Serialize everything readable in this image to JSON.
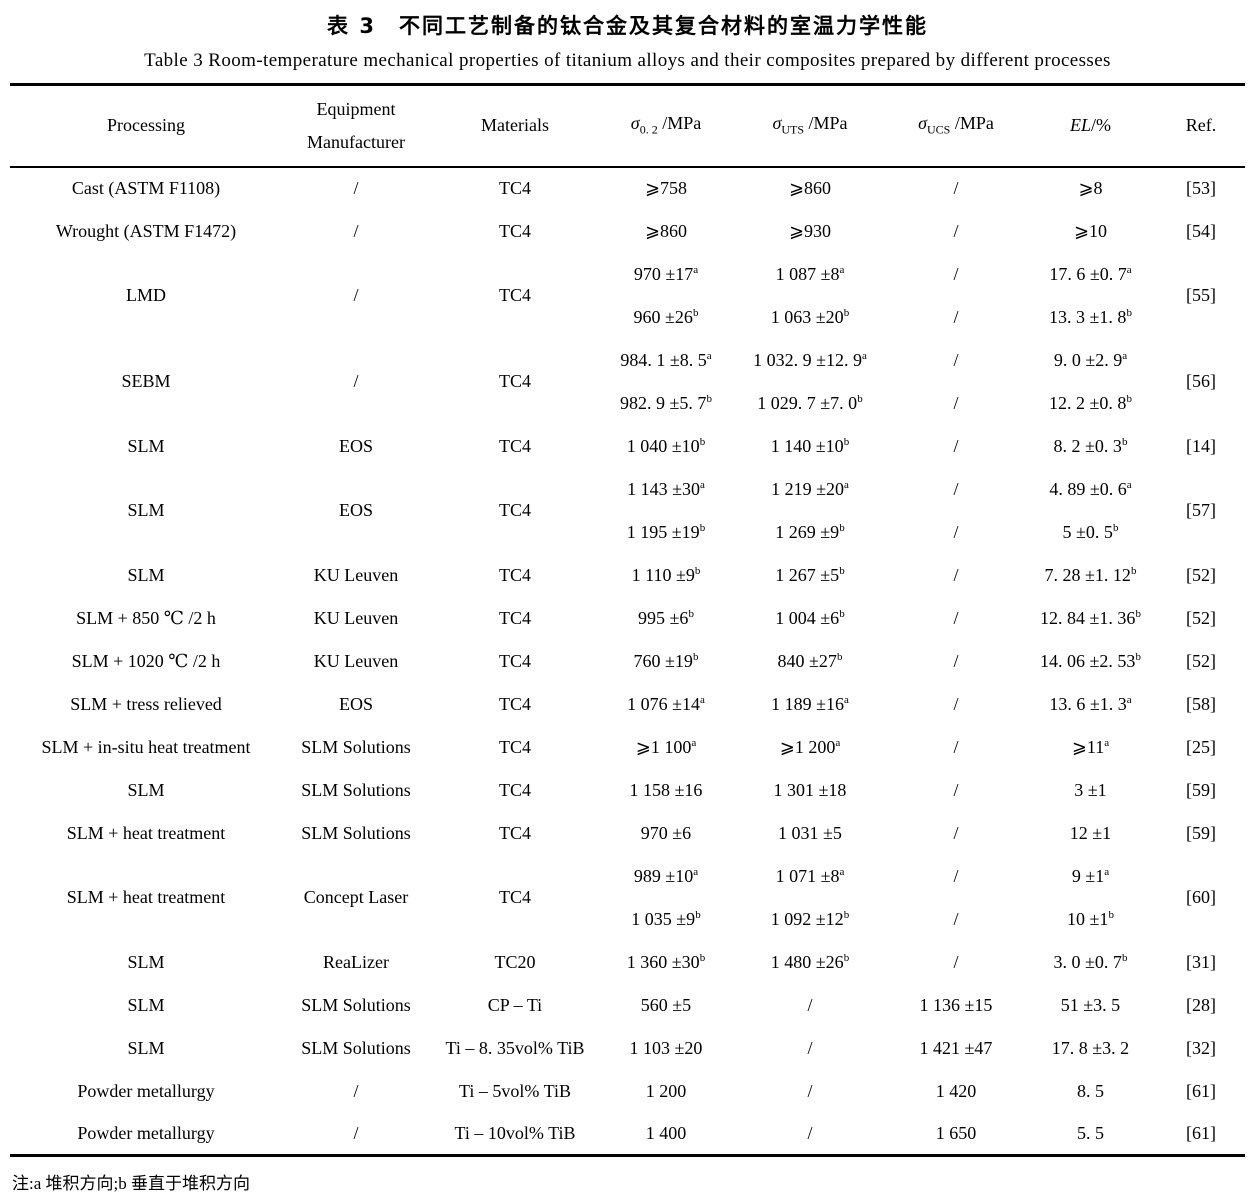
{
  "page": {
    "title_cn": "表 3　不同工艺制备的钛合金及其复合材料的室温力学性能",
    "title_en": "Table 3   Room-temperature mechanical properties of titanium alloys and their composites prepared by different processes",
    "footnote": "注:a 堆积方向;b 垂直于堆积方向",
    "colors": {
      "text": "#000000",
      "background": "#ffffff"
    }
  },
  "table": {
    "headers": {
      "processing": "Processing",
      "equipment_line1": "Equipment",
      "equipment_line2": "Manufacturer",
      "materials": "Materials",
      "sigma02": {
        "symbol": "σ",
        "sub": "0. 2",
        "unit": "/MPa"
      },
      "sigma_uts": {
        "symbol": "σ",
        "sub": "UTS",
        "unit": "/MPa"
      },
      "sigma_ucs": {
        "symbol": "σ",
        "sub": "UCS",
        "unit": "/MPa"
      },
      "el": {
        "symbol": "EL",
        "unit": "/%"
      },
      "ref": "Ref."
    },
    "rows": [
      {
        "processing": "Cast (ASTM F1108)",
        "manufacturer": "/",
        "materials": "TC4",
        "s02": [
          "⩾758"
        ],
        "uts": [
          "⩾860"
        ],
        "ucs": [
          "/"
        ],
        "el": [
          "⩾8"
        ],
        "ref": "[53]"
      },
      {
        "processing": "Wrought (ASTM F1472)",
        "manufacturer": "/",
        "materials": "TC4",
        "s02": [
          "⩾860"
        ],
        "uts": [
          "⩾930"
        ],
        "ucs": [
          "/"
        ],
        "el": [
          "⩾10"
        ],
        "ref": "[54]"
      },
      {
        "processing": "LMD",
        "manufacturer": "/",
        "materials": "TC4",
        "s02": [
          "970 ±17^a",
          "960 ±26^b"
        ],
        "uts": [
          "1 087 ±8^a",
          "1 063 ±20^b"
        ],
        "ucs": [
          "/",
          "/"
        ],
        "el": [
          "17. 6 ±0. 7^a",
          "13. 3 ±1. 8^b"
        ],
        "ref": "[55]"
      },
      {
        "processing": "SEBM",
        "manufacturer": "/",
        "materials": "TC4",
        "s02": [
          "984. 1 ±8. 5^a",
          "982. 9 ±5. 7^b"
        ],
        "uts": [
          "1 032. 9 ±12. 9^a",
          "1 029. 7 ±7. 0^b"
        ],
        "ucs": [
          "/",
          "/"
        ],
        "el": [
          "9. 0 ±2. 9^a",
          "12. 2 ±0. 8^b"
        ],
        "ref": "[56]"
      },
      {
        "processing": "SLM",
        "manufacturer": "EOS",
        "materials": "TC4",
        "s02": [
          "1 040 ±10^b"
        ],
        "uts": [
          "1 140 ±10^b"
        ],
        "ucs": [
          "/"
        ],
        "el": [
          "8. 2 ±0. 3^b"
        ],
        "ref": "[14]"
      },
      {
        "processing": "SLM",
        "manufacturer": "EOS",
        "materials": "TC4",
        "s02": [
          "1 143 ±30^a",
          "1 195 ±19^b"
        ],
        "uts": [
          "1 219 ±20^a",
          "1 269 ±9^b"
        ],
        "ucs": [
          "/",
          "/"
        ],
        "el": [
          "4. 89 ±0. 6^a",
          "5 ±0. 5^b"
        ],
        "ref": "[57]"
      },
      {
        "processing": "SLM",
        "manufacturer": "KU Leuven",
        "materials": "TC4",
        "s02": [
          "1 110 ±9^b"
        ],
        "uts": [
          "1 267 ±5^b"
        ],
        "ucs": [
          "/"
        ],
        "el": [
          "7. 28 ±1. 12^b"
        ],
        "ref": "[52]"
      },
      {
        "processing": "SLM + 850 ℃ /2 h",
        "manufacturer": "KU Leuven",
        "materials": "TC4",
        "s02": [
          "995 ±6^b"
        ],
        "uts": [
          "1 004 ±6^b"
        ],
        "ucs": [
          "/"
        ],
        "el": [
          "12. 84 ±1. 36^b"
        ],
        "ref": "[52]"
      },
      {
        "processing": "SLM + 1020 ℃ /2 h",
        "manufacturer": "KU Leuven",
        "materials": "TC4",
        "s02": [
          "760 ±19^b"
        ],
        "uts": [
          "840 ±27^b"
        ],
        "ucs": [
          "/"
        ],
        "el": [
          "14. 06 ±2. 53^b"
        ],
        "ref": "[52]"
      },
      {
        "processing": "SLM + tress relieved",
        "manufacturer": "EOS",
        "materials": "TC4",
        "s02": [
          "1 076 ±14^a"
        ],
        "uts": [
          "1 189 ±16^a"
        ],
        "ucs": [
          "/"
        ],
        "el": [
          "13. 6 ±1. 3^a"
        ],
        "ref": "[58]"
      },
      {
        "processing": "SLM + in-situ heat treatment",
        "manufacturer": "SLM Solutions",
        "materials": "TC4",
        "s02": [
          "⩾1 100^a"
        ],
        "uts": [
          "⩾1 200^a"
        ],
        "ucs": [
          "/"
        ],
        "el": [
          "⩾11^a"
        ],
        "ref": "[25]"
      },
      {
        "processing": "SLM",
        "manufacturer": "SLM Solutions",
        "materials": "TC4",
        "s02": [
          "1 158 ±16"
        ],
        "uts": [
          "1 301 ±18"
        ],
        "ucs": [
          "/"
        ],
        "el": [
          "3 ±1"
        ],
        "ref": "[59]"
      },
      {
        "processing": "SLM + heat treatment",
        "manufacturer": "SLM Solutions",
        "materials": "TC4",
        "s02": [
          "970 ±6"
        ],
        "uts": [
          "1 031 ±5"
        ],
        "ucs": [
          "/"
        ],
        "el": [
          "12 ±1"
        ],
        "ref": "[59]"
      },
      {
        "processing": "SLM + heat treatment",
        "manufacturer": "Concept Laser",
        "materials": "TC4",
        "s02": [
          "989 ±10^a",
          "1 035 ±9^b"
        ],
        "uts": [
          "1 071 ±8^a",
          "1 092 ±12^b"
        ],
        "ucs": [
          "/",
          "/"
        ],
        "el": [
          "9 ±1^a",
          "10 ±1^b"
        ],
        "ref": "[60]"
      },
      {
        "processing": "SLM",
        "manufacturer": "ReaLizer",
        "materials": "TC20",
        "s02": [
          "1 360 ±30^b"
        ],
        "uts": [
          "1 480 ±26^b"
        ],
        "ucs": [
          "/"
        ],
        "el": [
          "3. 0 ±0. 7^b"
        ],
        "ref": "[31]"
      },
      {
        "processing": "SLM",
        "manufacturer": "SLM Solutions",
        "materials": "CP – Ti",
        "s02": [
          "560 ±5"
        ],
        "uts": [
          "/"
        ],
        "ucs": [
          "1 136 ±15"
        ],
        "el": [
          "51 ±3. 5"
        ],
        "ref": "[28]"
      },
      {
        "processing": "SLM",
        "manufacturer": "SLM Solutions",
        "materials": "Ti – 8. 35vol% TiB",
        "s02": [
          "1 103 ±20"
        ],
        "uts": [
          "/"
        ],
        "ucs": [
          "1 421 ±47"
        ],
        "el": [
          "17. 8 ±3. 2"
        ],
        "ref": "[32]"
      },
      {
        "processing": "Powder metallurgy",
        "manufacturer": "/",
        "materials": "Ti – 5vol% TiB",
        "s02": [
          "1 200"
        ],
        "uts": [
          "/"
        ],
        "ucs": [
          "1 420"
        ],
        "el": [
          "8. 5"
        ],
        "ref": "[61]"
      },
      {
        "processing": "Powder metallurgy",
        "manufacturer": "/",
        "materials": "Ti – 10vol% TiB",
        "s02": [
          "1 400"
        ],
        "uts": [
          "/"
        ],
        "ucs": [
          "1 650"
        ],
        "el": [
          "5. 5"
        ],
        "ref": "[61]"
      }
    ]
  }
}
